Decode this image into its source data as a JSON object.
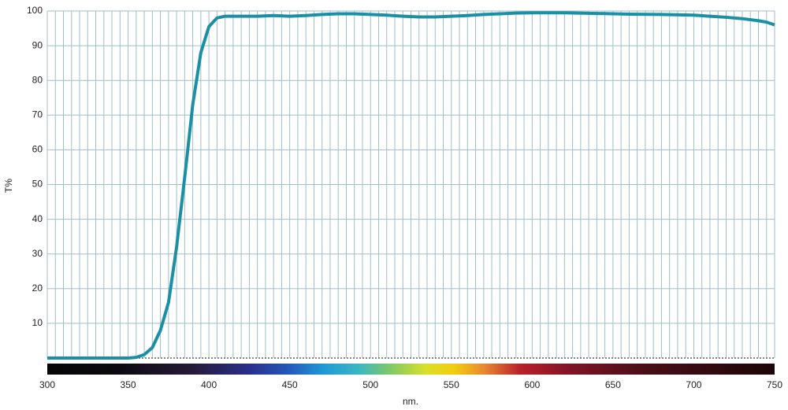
{
  "chart_data": {
    "type": "line",
    "y_label": "T%",
    "x_label": "nm.",
    "xlim": [
      300,
      750
    ],
    "xticks": [
      300,
      350,
      400,
      450,
      500,
      550,
      600,
      650,
      700,
      750
    ],
    "xgrid": [
      300,
      305,
      310,
      315,
      320,
      325,
      330,
      335,
      340,
      345,
      350,
      355,
      360,
      365,
      370,
      375,
      380,
      385,
      390,
      395,
      400,
      405,
      410,
      415,
      420,
      425,
      430,
      435,
      440,
      445,
      450,
      455,
      460,
      465,
      470,
      475,
      480,
      485,
      490,
      495,
      500,
      505,
      510,
      515,
      520,
      525,
      530,
      535,
      540,
      545,
      550,
      555,
      560,
      565,
      570,
      575,
      580,
      585,
      590,
      595,
      600,
      605,
      610,
      615,
      620,
      625,
      630,
      635,
      640,
      645,
      650,
      655,
      660,
      665,
      670,
      675,
      680,
      685,
      690,
      695,
      700,
      705,
      710,
      715,
      720,
      725,
      730,
      735,
      740,
      745,
      750
    ],
    "ylim": [
      0,
      100
    ],
    "yticks": [
      10,
      20,
      30,
      40,
      50,
      60,
      70,
      80,
      90,
      100
    ],
    "grid": true,
    "x": [
      300,
      310,
      320,
      330,
      340,
      350,
      355,
      360,
      365,
      370,
      375,
      380,
      385,
      390,
      395,
      400,
      405,
      410,
      420,
      430,
      440,
      450,
      460,
      470,
      480,
      490,
      500,
      510,
      520,
      530,
      540,
      550,
      560,
      570,
      580,
      590,
      600,
      620,
      640,
      660,
      680,
      700,
      710,
      720,
      730,
      740,
      745,
      750
    ],
    "series": [
      {
        "name": null,
        "color": "#1b8fa3",
        "values": [
          0,
          0,
          0,
          0,
          0,
          0,
          0.2,
          1,
          3,
          8,
          16,
          32,
          52,
          73,
          88,
          95.5,
          98,
          98.5,
          98.5,
          98.5,
          98.7,
          98.5,
          98.7,
          99,
          99.2,
          99.2,
          99,
          98.8,
          98.5,
          98.3,
          98.3,
          98.5,
          98.7,
          99,
          99.2,
          99.4,
          99.5,
          99.5,
          99.3,
          99.1,
          99,
          98.8,
          98.5,
          98.2,
          97.8,
          97.2,
          96.8,
          96
        ]
      }
    ]
  }
}
